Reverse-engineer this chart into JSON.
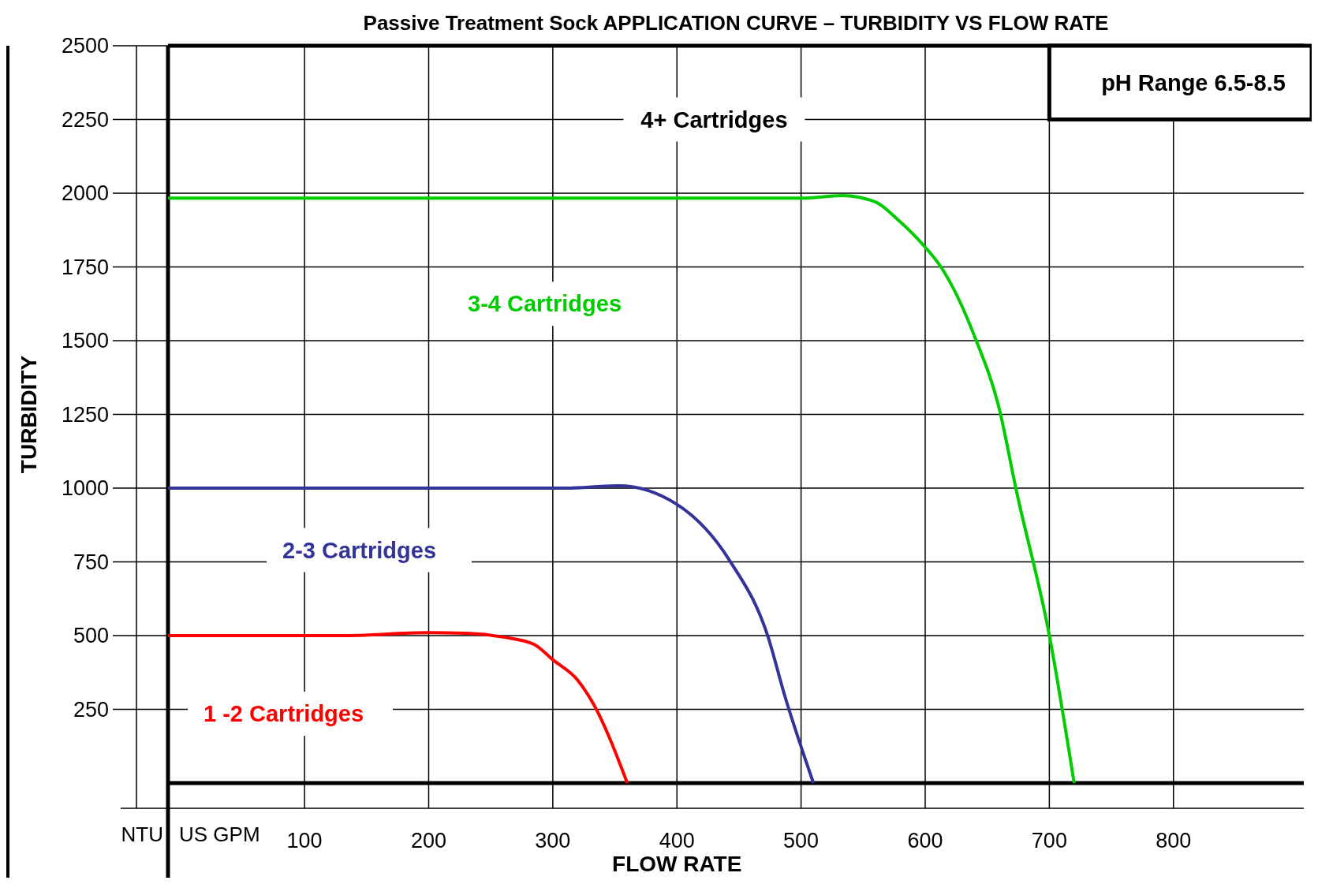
{
  "chart_data": {
    "type": "line",
    "title": "Passive Treatment Sock APPLICATION CURVE – TURBIDITY VS FLOW RATE",
    "xlabel": "FLOW RATE",
    "ylabel": "TURBIDITY",
    "annotations": [
      "4+ Cartridges",
      "pH Range 6.5-8.5",
      "NTU",
      "US GPM"
    ],
    "xlim": [
      -10,
      905
    ],
    "xticks": [
      100,
      200,
      300,
      400,
      500,
      600,
      700,
      800
    ],
    "ylim": [
      0,
      2500
    ],
    "yticks": [
      250,
      500,
      750,
      1000,
      1250,
      1500,
      1750,
      2000,
      2250,
      2500
    ],
    "grid": true,
    "marker": "none",
    "line_style": "solid",
    "series": [
      {
        "name": "1 -2 Cartridges",
        "color": "#ff0000",
        "x": [
          -10,
          130,
          200,
          230,
          260,
          285,
          300,
          320,
          333,
          360
        ],
        "values": [
          500,
          500,
          510,
          508,
          495,
          470,
          418,
          349,
          266,
          0
        ]
      },
      {
        "name": "2-3 Cartridges",
        "color": "#333399",
        "x": [
          -10,
          310,
          353,
          400,
          443,
          473,
          487,
          510
        ],
        "values": [
          1000,
          1000,
          1008,
          945,
          751,
          501,
          294,
          0
        ]
      },
      {
        "name": "3-4 Cartridges",
        "color": "#00cc00",
        "x": [
          -10,
          500,
          533,
          560,
          577,
          600,
          613,
          640,
          660,
          673,
          700,
          720
        ],
        "values": [
          1983,
          1983,
          1992,
          1970,
          1914,
          1817,
          1748,
          1512,
          1263,
          1000,
          501,
          0
        ]
      }
    ]
  }
}
